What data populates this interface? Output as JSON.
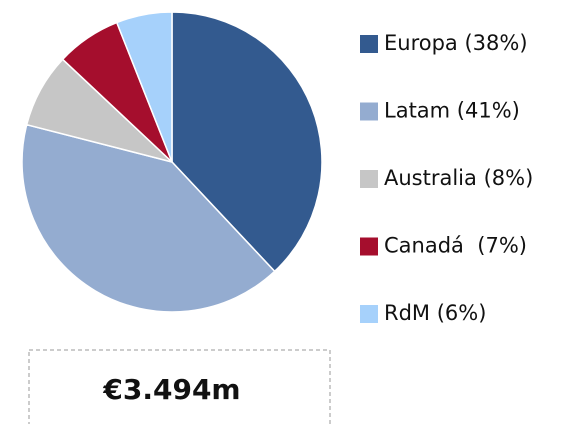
{
  "chart_data": {
    "type": "pie",
    "categories": [
      "Europa (38%)",
      "Latam (41%)",
      "Australia (8%)",
      "Canadá  (7%)",
      "RdM (6%)"
    ],
    "values": [
      38,
      41,
      8,
      7,
      6
    ],
    "colors": [
      "#335a8f",
      "#94acd0",
      "#c6c6c6",
      "#a50e2d",
      "#a6d1fb"
    ],
    "total_label": "€3.494m"
  }
}
